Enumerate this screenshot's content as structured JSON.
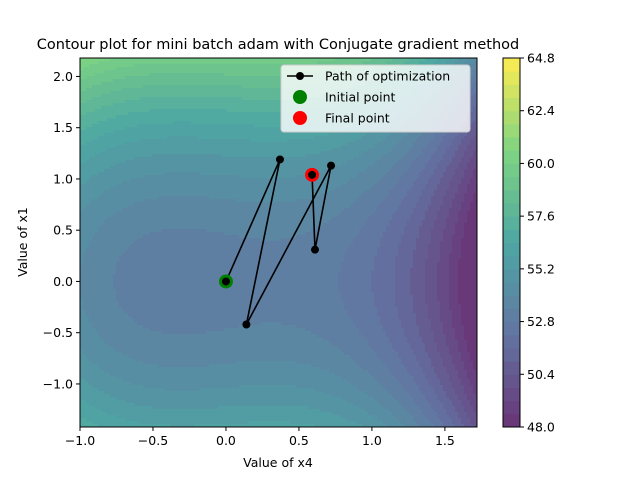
{
  "chart_data": {
    "type": "contour",
    "title": "Contour plot for mini batch adam with Conjugate gradient method",
    "xlabel": "Value of x4",
    "ylabel": "Value of x1",
    "xlim": [
      -1.0,
      1.72
    ],
    "ylim": [
      -1.42,
      2.18
    ],
    "x_ticks": [
      "−1.0",
      "−0.5",
      "0.0",
      "0.5",
      "1.0",
      "1.5"
    ],
    "x_tick_values": [
      -1.0,
      -0.5,
      0.0,
      0.5,
      1.0,
      1.5
    ],
    "y_ticks": [
      "−1.0",
      "−0.5",
      "0.0",
      "0.5",
      "1.0",
      "1.5",
      "2.0"
    ],
    "y_tick_values": [
      -1.0,
      -0.5,
      0.0,
      0.5,
      1.0,
      1.5,
      2.0
    ],
    "colorbar": {
      "min": 48.0,
      "max": 64.8,
      "tick_labels": [
        "48.0",
        "50.4",
        "52.8",
        "55.2",
        "57.6",
        "60.0",
        "62.4",
        "64.8"
      ],
      "tick_values": [
        48.0,
        50.4,
        52.8,
        55.2,
        57.6,
        60.0,
        62.4,
        64.8
      ],
      "levels": 28,
      "colormap": "viridis"
    },
    "path": {
      "name": "Path of optimization",
      "color": "#000000",
      "x": [
        0.0,
        0.37,
        0.14,
        0.72,
        0.61,
        0.59
      ],
      "y": [
        0.0,
        1.19,
        -0.42,
        1.13,
        0.31,
        1.04
      ]
    },
    "initial_point": {
      "name": "Initial point",
      "x": 0.0,
      "y": 0.0,
      "color": "#008000"
    },
    "final_point": {
      "name": "Final point",
      "x": 0.59,
      "y": 1.04,
      "color": "#ff0000"
    },
    "legend": {
      "placement": "upper-right",
      "entries": [
        "Path of optimization",
        "Initial point",
        "Final point"
      ]
    },
    "grid": false
  }
}
